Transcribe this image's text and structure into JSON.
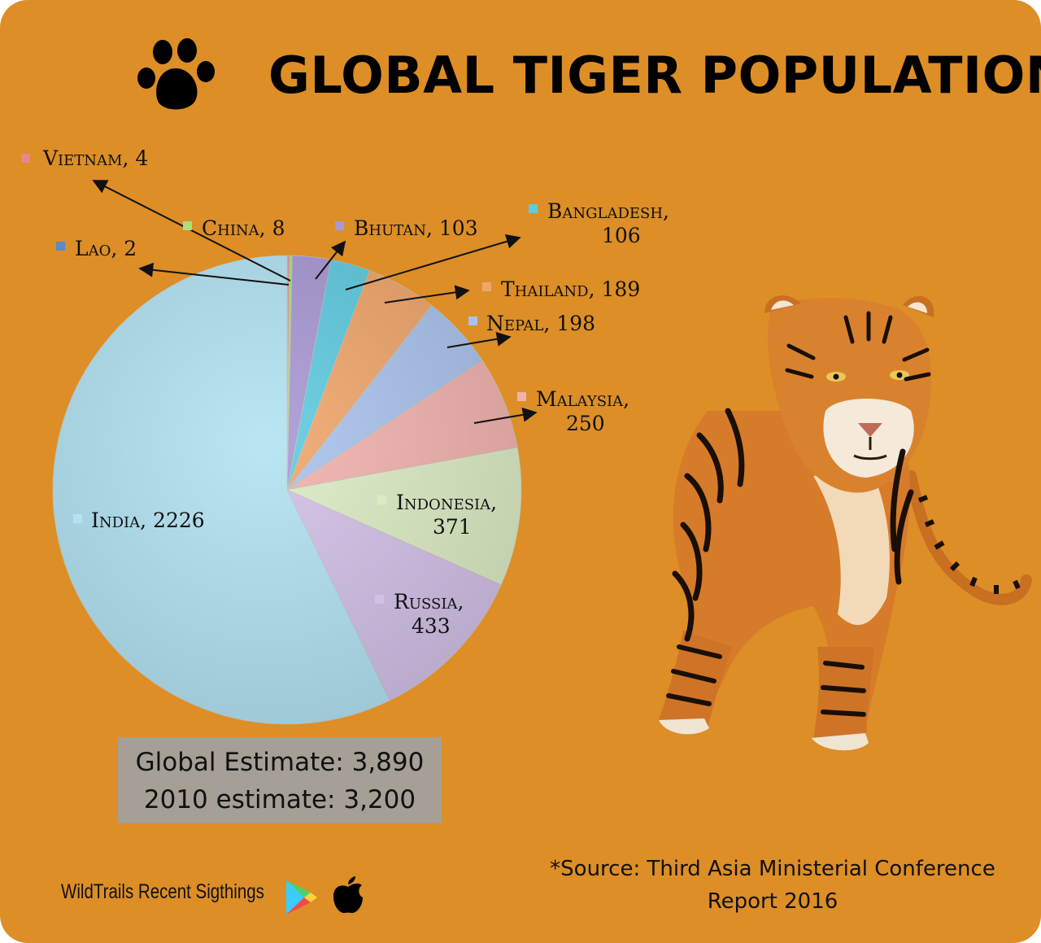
{
  "header": {
    "title": "GLOBAL TIGER POPULATION",
    "icon": "paw-print-icon"
  },
  "chart_data": {
    "type": "pie",
    "title": "GLOBAL TIGER POPULATION",
    "slices": [
      {
        "label": "India",
        "value": 2226,
        "text": "India, 2226",
        "color": "#b2e2f2"
      },
      {
        "label": "Lao",
        "value": 2,
        "text": "Lao, 2",
        "color": "#5e88c9"
      },
      {
        "label": "Vietnam",
        "value": 4,
        "text": "Vietnam, 4",
        "color": "#e98686"
      },
      {
        "label": "China",
        "value": 8,
        "text": "China, 8",
        "color": "#a8e07c"
      },
      {
        "label": "Bhutan",
        "value": 103,
        "text": "Bhutan, 103",
        "color": "#a898d4"
      },
      {
        "label": "Bangladesh",
        "value": 106,
        "text": "Bangladesh, 106",
        "color": "#5ecbe0"
      },
      {
        "label": "Thailand",
        "value": 189,
        "text": "Thailand, 189",
        "color": "#f0a56a"
      },
      {
        "label": "Nepal",
        "value": 198,
        "text": "Nepal, 198",
        "color": "#a9c2ec"
      },
      {
        "label": "Malaysia",
        "value": 250,
        "text": "Malaysia, 250",
        "color": "#f0b2ad"
      },
      {
        "label": "Indonesia",
        "value": 371,
        "text": "Indonesia, 371",
        "color": "#dcebc4"
      },
      {
        "label": "Russia",
        "value": 433,
        "text": "Russia, 433",
        "color": "#d2c0e7"
      }
    ],
    "legend": "callout labels with arrows"
  },
  "estimates": {
    "global": "Global Estimate: 3,890",
    "previous": "2010 estimate: 3,200"
  },
  "source": {
    "line1": "*Source: Third Asia Ministerial Conference",
    "line2": "Report 2016"
  },
  "footer": {
    "app_name": "WildTrails Recent Sigthings",
    "play_store_icon": "play-store-icon",
    "apple_icon": "apple-icon"
  },
  "illustration": "tiger-illustration"
}
